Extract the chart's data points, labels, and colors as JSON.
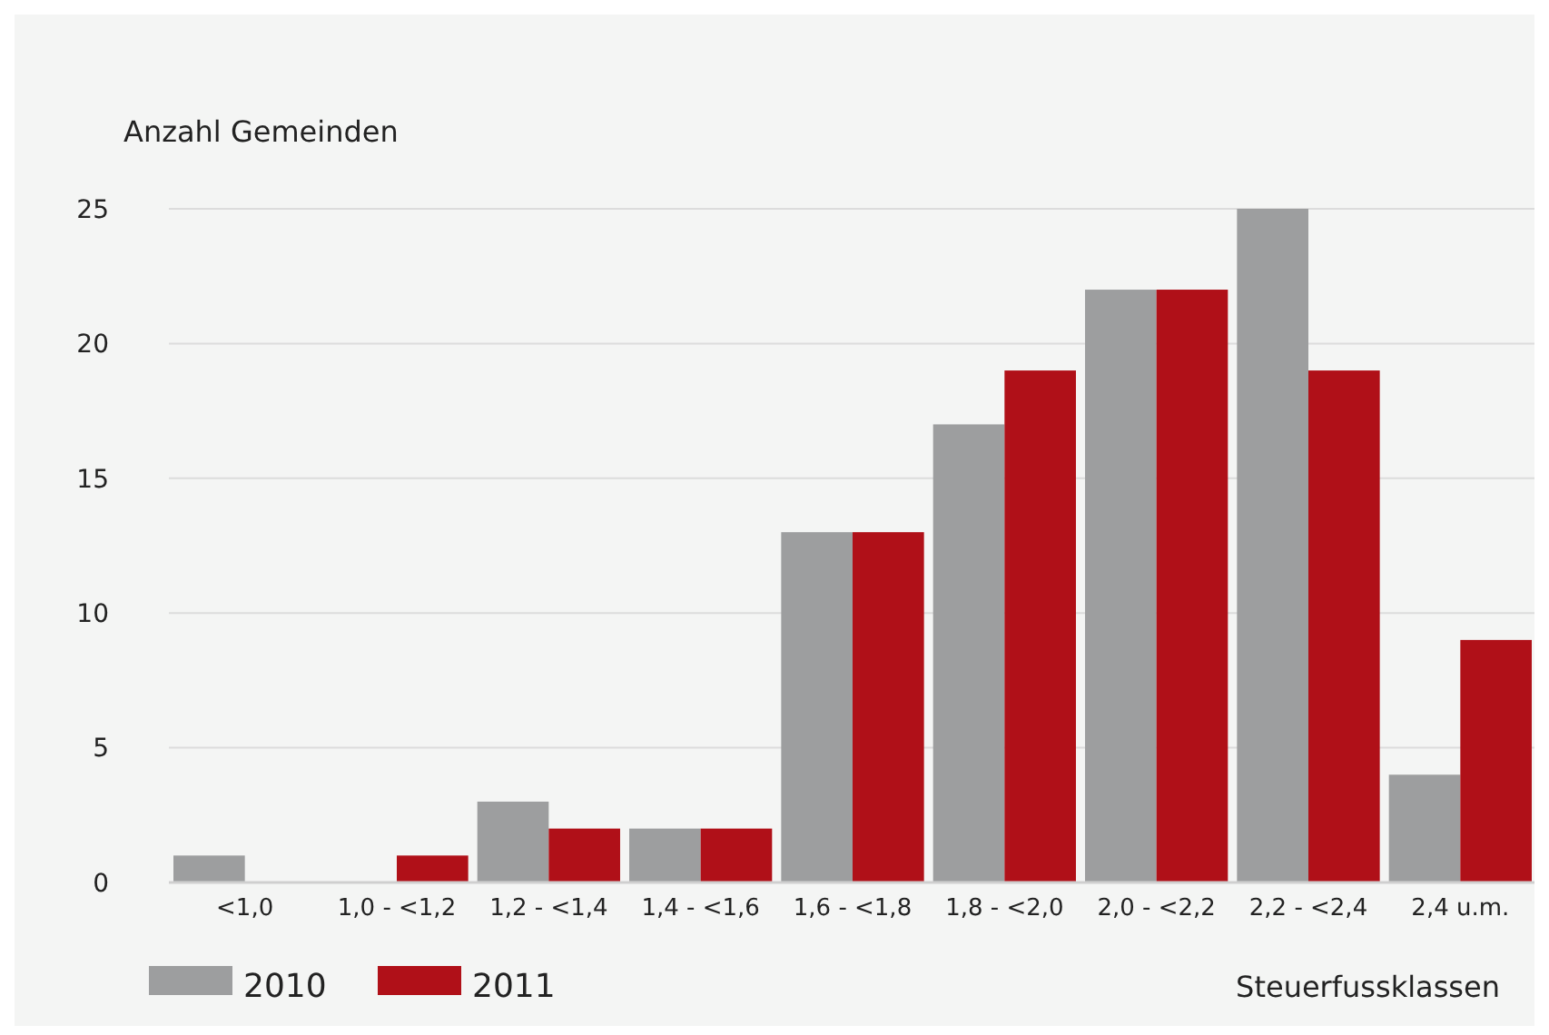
{
  "chart_data": {
    "type": "bar",
    "xlabel": "Steuerfussklassen",
    "ylabel": "Anzahl Gemeinden",
    "categories": [
      "<1,0",
      "1,0 - <1,2",
      "1,2 - <1,4",
      "1,4 - <1,6",
      "1,6 - <1,8",
      "1,8 - <2,0",
      "2,0 - <2,2",
      "2,2 - <2,4",
      "2,4 u.m."
    ],
    "series": [
      {
        "name": "2010",
        "color": "#9d9e9f",
        "values": [
          1,
          0,
          3,
          2,
          13,
          17,
          22,
          25,
          4
        ]
      },
      {
        "name": "2011",
        "color": "#b01018",
        "values": [
          0,
          1,
          2,
          2,
          13,
          19,
          22,
          19,
          9
        ]
      }
    ],
    "ylim": [
      0,
      25
    ],
    "yticks": [
      0,
      5,
      10,
      15,
      20,
      25
    ],
    "grid": "y",
    "legend": "bottom left"
  }
}
